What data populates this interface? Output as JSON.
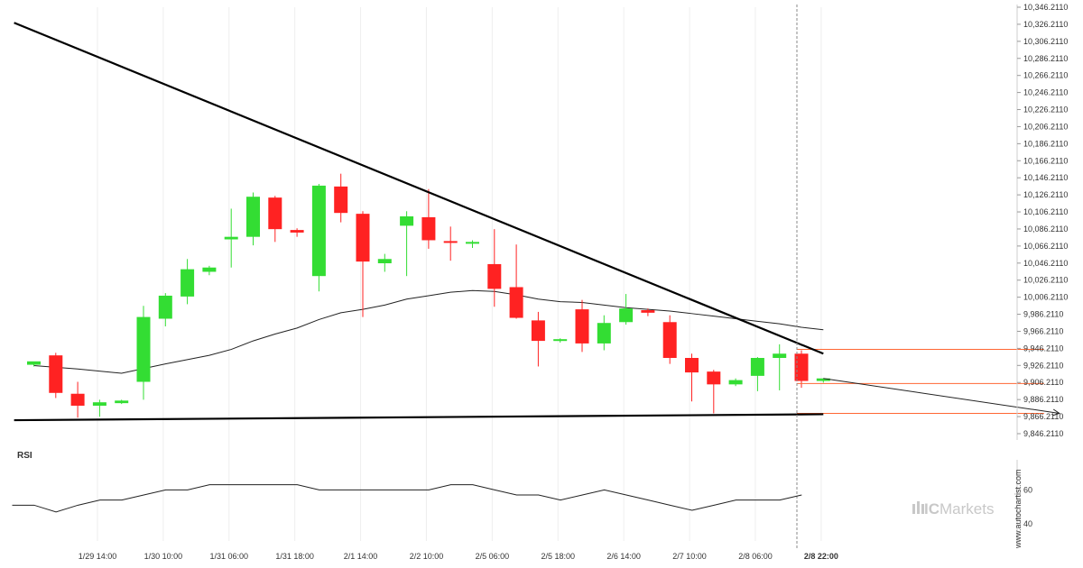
{
  "chart_data": {
    "type": "candlestick",
    "title": "",
    "colors": {
      "up": "#33dd33",
      "down": "#ff2222",
      "ma": "#222222",
      "trendline": "#000000",
      "forecast": "#ff6633"
    },
    "y_ticks": [
      "10,346.2110",
      "10,326.2110",
      "10,306.2110",
      "10,286.2110",
      "10,266.2110",
      "10,246.2110",
      "10,226.2110",
      "10,206.2110",
      "10,186.2110",
      "10,166.2110",
      "10,146.2110",
      "10,126.2110",
      "10,106.2110",
      "10,086.2110",
      "10,066.2110",
      "10,046.2110",
      "10,026.2110",
      "10,006.2110",
      "9,986.2110",
      "9,966.2110",
      "9,946.2110",
      "9,926.2110",
      "9,906.2110",
      "9,886.2110",
      "9,866.2110",
      "9,846.2110"
    ],
    "y_tick_values": [
      10346.211,
      10326.211,
      10306.211,
      10286.211,
      10266.211,
      10246.211,
      10226.211,
      10206.211,
      10186.211,
      10166.211,
      10146.211,
      10126.211,
      10106.211,
      10086.211,
      10066.211,
      10046.211,
      10026.211,
      10006.211,
      9986.211,
      9966.211,
      9946.211,
      9926.211,
      9906.211,
      9886.211,
      9866.211,
      9846.211
    ],
    "ylim": [
      9844.2,
      10350
    ],
    "x_ticks": [
      {
        "label": "1/29 14:00",
        "index": 2.9
      },
      {
        "label": "1/30 10:00",
        "index": 5.9
      },
      {
        "label": "1/31 06:00",
        "index": 8.9
      },
      {
        "label": "1/31 18:00",
        "index": 11.9
      },
      {
        "label": "2/1 14:00",
        "index": 14.9
      },
      {
        "label": "2/2 10:00",
        "index": 17.9
      },
      {
        "label": "2/5 06:00",
        "index": 20.9
      },
      {
        "label": "2/5 18:00",
        "index": 23.9
      },
      {
        "label": "2/6 14:00",
        "index": 26.9
      },
      {
        "label": "2/7 10:00",
        "index": 29.9
      },
      {
        "label": "2/8 06:00",
        "index": 32.9
      },
      {
        "label": "2/8 22:00",
        "index": 35.9,
        "bold": true
      }
    ],
    "candles": [
      {
        "o": 9927,
        "h": 9929,
        "l": 9925,
        "c": 9931
      },
      {
        "o": 9938,
        "h": 9941,
        "l": 9888,
        "c": 9894
      },
      {
        "o": 9893,
        "h": 9907,
        "l": 9865,
        "c": 9879
      },
      {
        "o": 9879,
        "h": 9886,
        "l": 9866,
        "c": 9883
      },
      {
        "o": 9882,
        "h": 9886,
        "l": 9881,
        "c": 9885
      },
      {
        "o": 9907,
        "h": 9996,
        "l": 9886,
        "c": 9983
      },
      {
        "o": 9981,
        "h": 10011,
        "l": 9972,
        "c": 10008
      },
      {
        "o": 10007,
        "h": 10051,
        "l": 9998,
        "c": 10039
      },
      {
        "o": 10036,
        "h": 10043,
        "l": 10032,
        "c": 10041
      },
      {
        "o": 10074,
        "h": 10110,
        "l": 10041,
        "c": 10077
      },
      {
        "o": 10077,
        "h": 10129,
        "l": 10067,
        "c": 10124
      },
      {
        "o": 10123,
        "h": 10125,
        "l": 10071,
        "c": 10086
      },
      {
        "o": 10085,
        "h": 10087,
        "l": 10077,
        "c": 10082
      },
      {
        "o": 10031,
        "h": 10139,
        "l": 10013,
        "c": 10137
      },
      {
        "o": 10136,
        "h": 10151,
        "l": 10094,
        "c": 10105
      },
      {
        "o": 10104,
        "h": 10107,
        "l": 9983,
        "c": 10048
      },
      {
        "o": 10046,
        "h": 10057,
        "l": 10036,
        "c": 10051
      },
      {
        "o": 10090,
        "h": 10107,
        "l": 10031,
        "c": 10101
      },
      {
        "o": 10100,
        "h": 10133,
        "l": 10063,
        "c": 10073
      },
      {
        "o": 10072,
        "h": 10089,
        "l": 10049,
        "c": 10070
      },
      {
        "o": 10070,
        "h": 10073,
        "l": 10064,
        "c": 10071
      },
      {
        "o": 10045,
        "h": 10086,
        "l": 9995,
        "c": 10016
      },
      {
        "o": 10018,
        "h": 10068,
        "l": 9981,
        "c": 9982
      },
      {
        "o": 9979,
        "h": 9989,
        "l": 9925,
        "c": 9955
      },
      {
        "o": 9956,
        "h": 9958,
        "l": 9953,
        "c": 9957
      },
      {
        "o": 9992,
        "h": 10003,
        "l": 9942,
        "c": 9952
      },
      {
        "o": 9952,
        "h": 9985,
        "l": 9944,
        "c": 9976
      },
      {
        "o": 9977,
        "h": 10010,
        "l": 9974,
        "c": 9993
      },
      {
        "o": 9991,
        "h": 9993,
        "l": 9984,
        "c": 9988
      },
      {
        "o": 9977,
        "h": 9985,
        "l": 9928,
        "c": 9935
      },
      {
        "o": 9935,
        "h": 9940,
        "l": 9884,
        "c": 9918
      },
      {
        "o": 9919,
        "h": 9921,
        "l": 9870,
        "c": 9904
      },
      {
        "o": 9904,
        "h": 9911,
        "l": 9902,
        "c": 9909
      },
      {
        "o": 9914,
        "h": 9936,
        "l": 9896,
        "c": 9935
      },
      {
        "o": 9935,
        "h": 9951,
        "l": 9897,
        "c": 9940
      },
      {
        "o": 9940,
        "h": 9944,
        "l": 9900,
        "c": 9908
      },
      {
        "o": 9908,
        "h": 9911,
        "l": 9906,
        "c": 9911
      }
    ],
    "ma_line": [
      [
        0,
        9926
      ],
      [
        2,
        9922
      ],
      [
        4,
        9917
      ],
      [
        6,
        9928
      ],
      [
        8,
        9938
      ],
      [
        9,
        9945
      ],
      [
        10,
        9955
      ],
      [
        11,
        9963
      ],
      [
        12,
        9970
      ],
      [
        13,
        9980
      ],
      [
        14,
        9988
      ],
      [
        15,
        9992
      ],
      [
        16,
        9997
      ],
      [
        17,
        10004
      ],
      [
        18,
        10008
      ],
      [
        19,
        10012
      ],
      [
        20,
        10014
      ],
      [
        21,
        10013
      ],
      [
        22,
        10009
      ],
      [
        23,
        10004
      ],
      [
        24,
        10001
      ],
      [
        25,
        10000
      ],
      [
        26,
        9997
      ],
      [
        27,
        9994
      ],
      [
        28,
        9992
      ],
      [
        29,
        9990
      ],
      [
        30,
        9987
      ],
      [
        31,
        9984
      ],
      [
        32,
        9981
      ],
      [
        33,
        9978
      ],
      [
        34,
        9975
      ],
      [
        35,
        9971
      ],
      [
        36,
        9968
      ]
    ],
    "resistance_line": [
      [
        -0.9,
        10328
      ],
      [
        36,
        9940
      ]
    ],
    "support_line": [
      [
        -0.9,
        9862
      ],
      [
        36,
        9869
      ]
    ],
    "forecast_arrow": [
      [
        36,
        9911
      ],
      [
        44.5,
        9870
      ]
    ],
    "target_levels": [
      9945,
      9905,
      9870
    ],
    "target_end_index": 44.5,
    "current_index": 36,
    "rsi": {
      "title": "RSI",
      "y_ticks": [
        "60",
        "40"
      ],
      "y_tick_values": [
        60,
        40
      ],
      "ylim": [
        30,
        75
      ],
      "values": [
        51,
        51,
        47,
        51,
        54,
        54,
        57,
        60,
        60,
        63,
        63,
        63,
        63,
        63,
        60,
        60,
        60,
        60,
        60,
        60,
        63,
        63,
        60,
        57,
        57,
        54,
        57,
        60,
        57,
        54,
        51,
        48,
        51,
        54,
        54,
        54,
        57
      ]
    }
  },
  "watermark": {
    "site": "www.autochartist.com",
    "brand_prefix": "IC",
    "brand_suffix": "Markets"
  }
}
